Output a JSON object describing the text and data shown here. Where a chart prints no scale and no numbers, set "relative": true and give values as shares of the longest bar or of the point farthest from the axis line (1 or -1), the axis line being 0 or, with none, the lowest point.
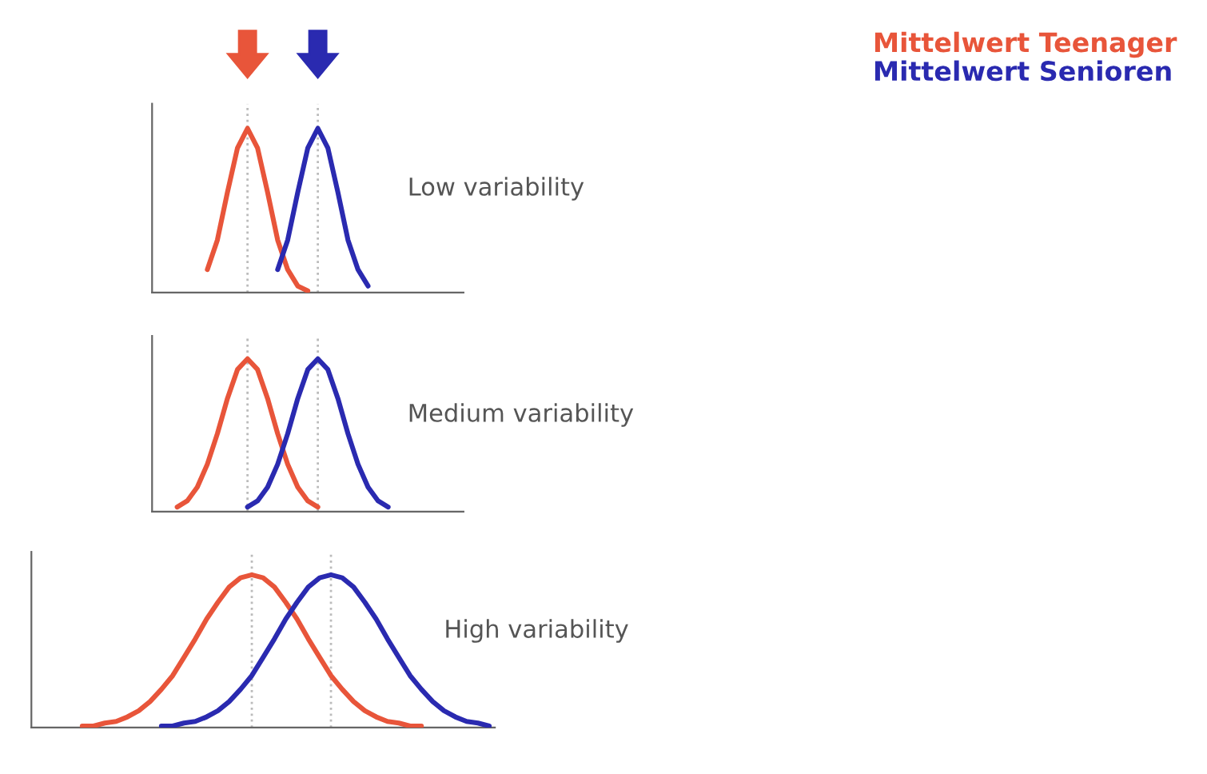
{
  "chart_data": [
    {
      "type": "line",
      "relative": true,
      "legend": "top right",
      "annotations": [
        "Low variability"
      ],
      "categories": [
        null,
        null,
        null,
        null,
        null,
        null,
        null,
        null,
        null,
        null,
        null,
        null,
        null,
        null,
        null,
        null,
        null,
        null,
        null,
        null,
        null,
        null,
        null,
        null,
        null,
        null,
        null,
        null,
        null,
        null,
        null
      ],
      "series": [
        {
          "name": "Mittelwert Teenager",
          "color": "#e8553a",
          "values": [
            null,
            null,
            null,
            null,
            null,
            0.14,
            0.32,
            0.61,
            0.88,
            1,
            0.88,
            0.61,
            0.32,
            0.14,
            0.04,
            0.01,
            null,
            null,
            null,
            null,
            null,
            null,
            null,
            null,
            null,
            null,
            null,
            null,
            null,
            null,
            null
          ]
        },
        {
          "name": "Mittelwert Senioren",
          "color": "#2a2ab0",
          "values": [
            null,
            null,
            null,
            null,
            null,
            null,
            null,
            null,
            null,
            null,
            null,
            null,
            0.14,
            0.32,
            0.61,
            0.88,
            1,
            0.88,
            0.61,
            0.32,
            0.14,
            0.04,
            null,
            null,
            null,
            null,
            null,
            null,
            null,
            null,
            null
          ]
        }
      ]
    },
    {
      "type": "line",
      "relative": true,
      "annotations": [
        "Medium variability"
      ],
      "categories": [
        null,
        null,
        null,
        null,
        null,
        null,
        null,
        null,
        null,
        null,
        null,
        null,
        null,
        null,
        null,
        null,
        null,
        null,
        null,
        null,
        null,
        null,
        null,
        null,
        null,
        null,
        null,
        null,
        null,
        null,
        null
      ],
      "series": [
        {
          "color": "#e8553a",
          "values": [
            null,
            null,
            0.03,
            0.07,
            0.16,
            0.31,
            0.51,
            0.74,
            0.93,
            1,
            0.93,
            0.74,
            0.51,
            0.31,
            0.16,
            0.07,
            0.03,
            null,
            null,
            null,
            null,
            null,
            null,
            null,
            null,
            null,
            null,
            null,
            null,
            null,
            null
          ]
        },
        {
          "color": "#2a2ab0",
          "values": [
            null,
            null,
            null,
            null,
            null,
            null,
            null,
            null,
            null,
            0.03,
            0.07,
            0.16,
            0.31,
            0.51,
            0.74,
            0.93,
            1,
            0.93,
            0.74,
            0.51,
            0.31,
            0.16,
            0.07,
            0.03,
            null,
            null,
            null,
            null,
            null,
            null,
            null
          ]
        }
      ]
    },
    {
      "type": "line",
      "relative": true,
      "annotations": [
        "High variability"
      ],
      "categories": [
        null,
        null,
        null,
        null,
        null,
        null,
        null,
        null,
        null,
        null,
        null,
        null,
        null,
        null,
        null,
        null,
        null,
        null,
        null,
        null,
        null,
        null,
        null,
        null,
        null,
        null,
        null,
        null,
        null,
        null,
        null,
        null,
        null,
        null,
        null,
        null,
        null,
        null,
        null,
        null,
        null
      ],
      "series": [
        {
          "color": "#e8553a",
          "values": [
            null,
            null,
            null,
            null,
            0.01,
            0.01,
            0.03,
            0.04,
            0.07,
            0.11,
            0.17,
            0.25,
            0.34,
            0.46,
            0.58,
            0.71,
            0.82,
            0.92,
            0.98,
            1,
            0.98,
            0.92,
            0.82,
            0.71,
            0.58,
            0.46,
            0.34,
            0.25,
            0.17,
            0.11,
            0.07,
            0.04,
            0.03,
            0.01,
            0.01,
            null,
            null,
            null,
            null,
            null,
            null
          ]
        },
        {
          "color": "#2a2ab0",
          "values": [
            null,
            null,
            null,
            null,
            null,
            null,
            null,
            null,
            null,
            null,
            null,
            0.01,
            0.01,
            0.03,
            0.04,
            0.07,
            0.11,
            0.17,
            0.25,
            0.34,
            0.46,
            0.58,
            0.71,
            0.82,
            0.92,
            0.98,
            1,
            0.98,
            0.92,
            0.82,
            0.71,
            0.58,
            0.46,
            0.34,
            0.25,
            0.17,
            0.11,
            0.07,
            0.04,
            0.03,
            0.01
          ]
        }
      ]
    }
  ]
}
